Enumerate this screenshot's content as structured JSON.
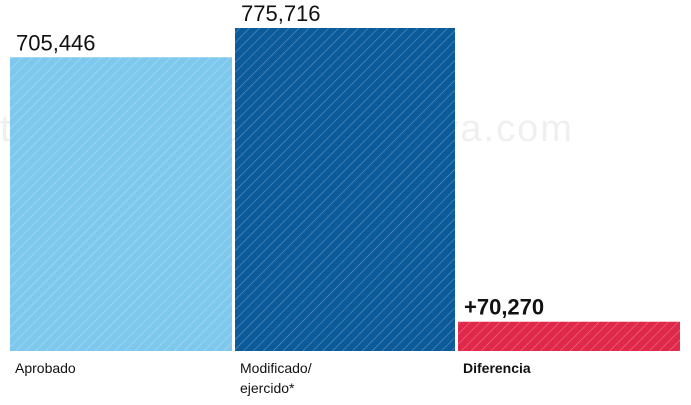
{
  "chart_data": {
    "type": "bar",
    "categories": [
      "Aprobado",
      "Modificado/\nejercido*",
      "Diferencia"
    ],
    "values": [
      705446,
      775716,
      70270
    ],
    "value_labels": [
      "705,446",
      "775,716",
      "+70,270"
    ],
    "ylim": [
      0,
      800000
    ],
    "grid": false,
    "legend": "none",
    "colors": [
      "#7ec8ee",
      "#0b5a9a",
      "#e0284a"
    ],
    "hatched": true
  },
  "watermark": "tas@eficienciainformativa.com"
}
